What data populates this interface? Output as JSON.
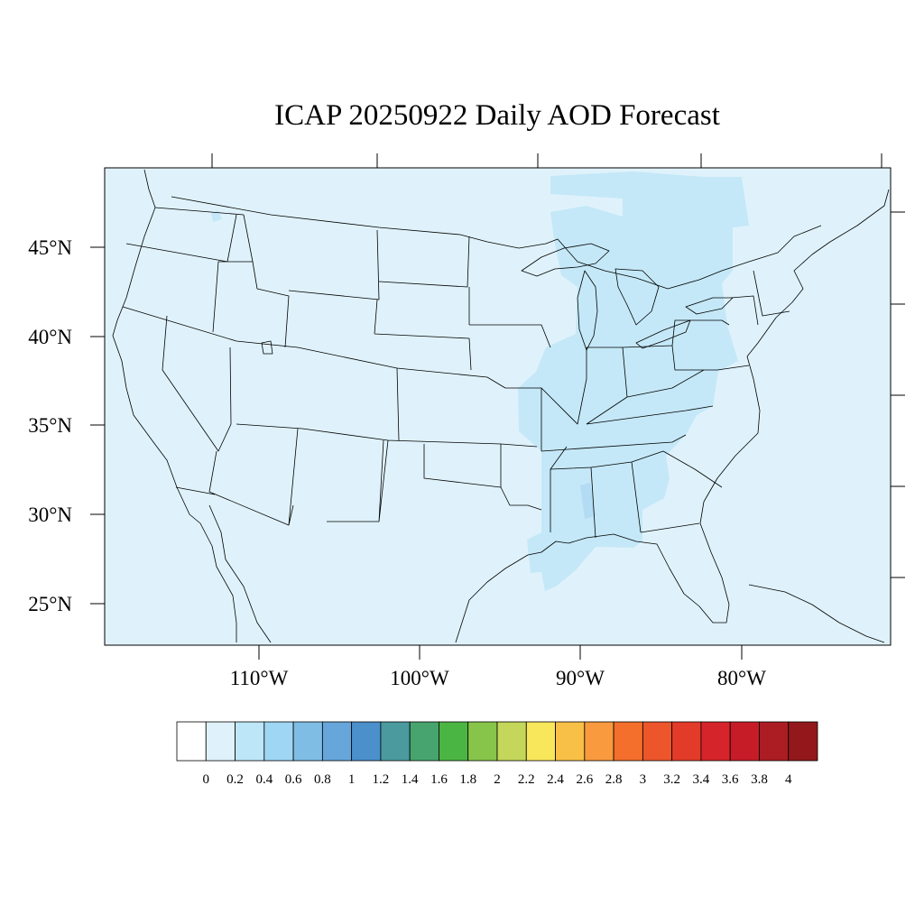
{
  "title": "ICAP 20250922 Daily AOD Forecast",
  "colors": {
    "background_fill": "#dff2fb",
    "elevated_fill": "#c4e8f8",
    "spot_fill": "#b3dcf4",
    "boundary_stroke": "#000000"
  },
  "map": {
    "lat_labels": [
      "45°N",
      "40°N",
      "35°N",
      "30°N",
      "25°N"
    ],
    "lon_labels": [
      "110°W",
      "100°W",
      "90°W",
      "80°W"
    ]
  },
  "colorbar": {
    "labels": [
      "0",
      "0.2",
      "0.4",
      "0.6",
      "0.8",
      "1",
      "1.2",
      "1.4",
      "1.6",
      "1.8",
      "2",
      "2.2",
      "2.4",
      "2.6",
      "2.8",
      "3",
      "3.2",
      "3.4",
      "3.6",
      "3.8",
      "4"
    ],
    "colors": [
      "#ffffff",
      "#dff2fb",
      "#bde6f8",
      "#9fd6f3",
      "#7fbde5",
      "#66a6db",
      "#4b8fcb",
      "#4a9a9e",
      "#47a46e",
      "#4bb544",
      "#87c54a",
      "#c4d75a",
      "#f8e75b",
      "#f9c047",
      "#f89a3d",
      "#f46f2c",
      "#ed552b",
      "#e33b29",
      "#d6242b",
      "#c61c28",
      "#ac1c23",
      "#92181b"
    ]
  }
}
